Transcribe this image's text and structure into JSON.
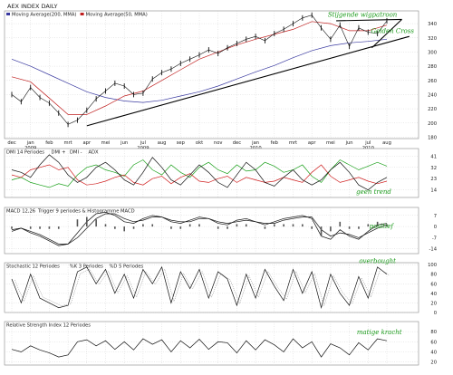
{
  "chart_data": {
    "type": "line",
    "title": "AEX INDEX DAILY",
    "colors": {
      "price": "#111111",
      "ma200": "#3a3aa0",
      "ma50": "#c02020",
      "dmi_plus": "#1aa01a",
      "dmi_minus": "#d02020",
      "adx": "#111111",
      "annot_green": "#1a9a1a",
      "annot_red": "#cc1111"
    },
    "time_axis": {
      "labels": [
        "dec",
        "jan",
        "feb",
        "mrt",
        "apr",
        "mei",
        "jun",
        "jul",
        "aug",
        "sep",
        "okt",
        "nov",
        "dec",
        "jan",
        "feb",
        "mrt",
        "apr",
        "mei",
        "jun",
        "jul",
        "aug"
      ],
      "year_labels": [
        {
          "after": "jan",
          "text": "2009"
        },
        {
          "after": "jul",
          "text": "2009"
        },
        {
          "after": "jan",
          "text": "2010"
        },
        {
          "after": "jul",
          "text": "2010"
        }
      ]
    },
    "panels": [
      {
        "id": "price",
        "legend": [
          "Moving Average(200, MMA)",
          "Moving Average(50, MMA)"
        ],
        "yticks": [
          180,
          200,
          220,
          240,
          260,
          280,
          300,
          320,
          340
        ],
        "ylim": [
          178,
          358
        ],
        "series": [
          {
            "name": "Moving Average(200, MMA)",
            "style": "line",
            "color_key": "ma200",
            "x": [
              0,
              1,
              2,
              3,
              4,
              5,
              6,
              7,
              8,
              9,
              10,
              11,
              12,
              13,
              14,
              15,
              16,
              17,
              18,
              19,
              20
            ],
            "values": [
              290,
              280,
              268,
              256,
              244,
              236,
              231,
              229,
              232,
              238,
              244,
              252,
              262,
              272,
              281,
              292,
              302,
              309,
              313,
              315,
              318
            ]
          },
          {
            "name": "Moving Average(50, MMA)",
            "style": "line",
            "color_key": "ma50",
            "x": [
              0,
              1,
              2,
              3,
              4,
              5,
              6,
              7,
              8,
              9,
              10,
              11,
              12,
              13,
              14,
              15,
              16,
              17,
              18,
              19,
              20
            ],
            "values": [
              265,
              258,
              235,
              212,
              212,
              224,
              238,
              245,
              260,
              275,
              290,
              300,
              310,
              318,
              325,
              332,
              343,
              340,
              330,
              330,
              338
            ]
          },
          {
            "name": "Koers",
            "style": "bars",
            "color_key": "price",
            "x": [
              0,
              0.5,
              1,
              1.5,
              2,
              2.5,
              3,
              3.5,
              4,
              4.5,
              5,
              5.5,
              6,
              6.5,
              7,
              7.5,
              8,
              8.5,
              9,
              9.5,
              10,
              10.5,
              11,
              11.5,
              12,
              12.5,
              13,
              13.5,
              14,
              14.5,
              15,
              15.5,
              16,
              16.5,
              17,
              17.5,
              18,
              18.5,
              19,
              19.5,
              20
            ],
            "values": [
              240,
              230,
              250,
              236,
              228,
              214,
              198,
              204,
              218,
              234,
              245,
              256,
              252,
              240,
              242,
              262,
              271,
              276,
              284,
              290,
              296,
              303,
              298,
              306,
              312,
              318,
              322,
              316,
              326,
              332,
              340,
              348,
              352,
              334,
              318,
              338,
              308,
              334,
              328,
              326,
              344
            ]
          }
        ],
        "trendlines": [
          {
            "from": [
              4,
              196
            ],
            "to": [
              21.2,
              322
            ]
          },
          {
            "from": [
              19.2,
              306
            ],
            "to": [
              20.8,
              346
            ]
          },
          {
            "from": [
              17.3,
              344
            ],
            "to": [
              20.8,
              346
            ]
          }
        ],
        "annotations": [
          {
            "text": "Stijgende wigpatroon",
            "color_key": "annot_green",
            "at": [
              18.7,
              350
            ]
          },
          {
            "text": "Golden Cross",
            "color_key": "annot_green",
            "at": [
              20.3,
              327
            ]
          }
        ]
      },
      {
        "id": "dmi",
        "legend": [
          "DMI 14 Periodes",
          "DMI +",
          "DMI -",
          "ADX"
        ],
        "yticks": [
          14,
          23,
          32,
          41
        ],
        "ylim": [
          8,
          47
        ],
        "series": [
          {
            "name": "DMI +",
            "color_key": "dmi_plus",
            "x": [
              0,
              0.5,
              1,
              1.5,
              2,
              2.5,
              3,
              3.5,
              4,
              4.5,
              5,
              5.5,
              6,
              6.5,
              7,
              7.5,
              8,
              8.5,
              9,
              9.5,
              10,
              10.5,
              11,
              11.5,
              12,
              12.5,
              13,
              13.5,
              14,
              14.5,
              15,
              15.5,
              16,
              16.5,
              17,
              17.5,
              18,
              18.5,
              19,
              19.5,
              20
            ],
            "values": [
              22,
              24,
              20,
              18,
              16,
              19,
              17,
              26,
              32,
              34,
              30,
              28,
              25,
              34,
              38,
              30,
              26,
              34,
              28,
              24,
              32,
              36,
              30,
              27,
              34,
              29,
              30,
              36,
              33,
              28,
              30,
              34,
              25,
              20,
              30,
              38,
              34,
              30,
              33,
              36,
              33
            ]
          },
          {
            "name": "DMI -",
            "color_key": "dmi_minus",
            "x": [
              0,
              0.5,
              1,
              1.5,
              2,
              2.5,
              3,
              3.5,
              4,
              4.5,
              5,
              5.5,
              6,
              6.5,
              7,
              7.5,
              8,
              8.5,
              9,
              9.5,
              10,
              10.5,
              11,
              11.5,
              12,
              12.5,
              13,
              13.5,
              14,
              14.5,
              15,
              15.5,
              16,
              16.5,
              17,
              17.5,
              18,
              18.5,
              19,
              19.5,
              20
            ],
            "values": [
              26,
              24,
              30,
              32,
              34,
              30,
              32,
              22,
              18,
              19,
              21,
              24,
              26,
              20,
              18,
              23,
              25,
              19,
              24,
              27,
              21,
              20,
              23,
              25,
              20,
              24,
              22,
              20,
              21,
              24,
              22,
              20,
              28,
              34,
              25,
              20,
              22,
              24,
              21,
              19,
              21
            ]
          },
          {
            "name": "ADX",
            "color_key": "adx",
            "x": [
              0,
              0.5,
              1,
              1.5,
              2,
              2.5,
              3,
              3.5,
              4,
              4.5,
              5,
              5.5,
              6,
              6.5,
              7,
              7.5,
              8,
              8.5,
              9,
              9.5,
              10,
              10.5,
              11,
              11.5,
              12,
              12.5,
              13,
              13.5,
              14,
              14.5,
              15,
              15.5,
              16,
              16.5,
              17,
              17.5,
              18,
              18.5,
              19,
              19.5,
              20
            ],
            "values": [
              30,
              28,
              24,
              34,
              42,
              36,
              26,
              20,
              24,
              32,
              36,
              30,
              22,
              18,
              28,
              40,
              32,
              22,
              18,
              26,
              34,
              28,
              20,
              16,
              26,
              36,
              30,
              20,
              17,
              24,
              30,
              22,
              18,
              22,
              30,
              36,
              28,
              18,
              14,
              20,
              24
            ]
          }
        ],
        "annotations": [
          {
            "text": "geen trend",
            "color_key": "annot_green",
            "at": [
              19.3,
              11
            ]
          }
        ]
      },
      {
        "id": "macd",
        "legend": [
          "MACD 12,26",
          "Trigger 9 periodes & Histogramme MACD"
        ],
        "yticks": [
          -14,
          -7,
          0,
          7
        ],
        "ylim": [
          -17,
          12
        ],
        "series": [
          {
            "name": "MACD",
            "color_key": "adx",
            "x": [
              0,
              0.5,
              1,
              1.5,
              2,
              2.5,
              3,
              3.5,
              4,
              4.5,
              5,
              5.5,
              6,
              6.5,
              7,
              7.5,
              8,
              8.5,
              9,
              9.5,
              10,
              10.5,
              11,
              11.5,
              12,
              12.5,
              13,
              13.5,
              14,
              14.5,
              15,
              15.5,
              16,
              16.5,
              17,
              17.5,
              18,
              18.5,
              19,
              19.5,
              20
            ],
            "values": [
              -3,
              -1,
              -4,
              -6,
              -9,
              -12,
              -11,
              -4,
              3,
              8,
              9,
              7,
              3,
              2,
              5,
              7,
              6,
              3,
              2,
              4,
              6,
              5,
              2,
              1,
              4,
              5,
              3,
              1,
              3,
              5,
              6,
              7,
              5,
              -6,
              -8,
              -2,
              -6,
              -8,
              -3,
              1,
              2
            ]
          },
          {
            "name": "Trigger",
            "color_key": "adx",
            "x": [
              0,
              0.5,
              1,
              1.5,
              2,
              2.5,
              3,
              3.5,
              4,
              4.5,
              5,
              5.5,
              6,
              6.5,
              7,
              7.5,
              8,
              8.5,
              9,
              9.5,
              10,
              10.5,
              11,
              11.5,
              12,
              12.5,
              13,
              13.5,
              14,
              14.5,
              15,
              15.5,
              16,
              16.5,
              17,
              17.5,
              18,
              18.5,
              19,
              19.5,
              20
            ],
            "values": [
              -2,
              -1,
              -3,
              -5,
              -8,
              -11,
              -11,
              -7,
              -1,
              5,
              8,
              8,
              5,
              3,
              4,
              6,
              6,
              4,
              3,
              3,
              5,
              5,
              3,
              2,
              3,
              4,
              3,
              2,
              2,
              4,
              5,
              6,
              6,
              -2,
              -6,
              -4,
              -5,
              -7,
              -4,
              -1,
              1
            ]
          }
        ],
        "annotations": [
          {
            "text": "positief",
            "color_key": "annot_green",
            "at": [
              19.7,
              -1
            ]
          }
        ]
      },
      {
        "id": "stoch",
        "legend": [
          "Stochastic 12 Periodes",
          "%K 3 Periodes",
          "%D 5 Periodes"
        ],
        "yticks": [
          0,
          20,
          40,
          60,
          80,
          100
        ],
        "ylim": [
          0,
          104
        ],
        "series": [
          {
            "name": "%K",
            "color_key": "adx",
            "x": [
              0,
              0.5,
              1,
              1.5,
              2,
              2.5,
              3,
              3.5,
              4,
              4.5,
              5,
              5.5,
              6,
              6.5,
              7,
              7.5,
              8,
              8.5,
              9,
              9.5,
              10,
              10.5,
              11,
              11.5,
              12,
              12.5,
              13,
              13.5,
              14,
              14.5,
              15,
              15.5,
              16,
              16.5,
              17,
              17.5,
              18,
              18.5,
              19,
              19.5,
              20
            ],
            "values": [
              70,
              20,
              80,
              30,
              20,
              10,
              15,
              85,
              95,
              60,
              90,
              40,
              80,
              30,
              90,
              60,
              95,
              20,
              85,
              50,
              90,
              30,
              85,
              70,
              15,
              80,
              30,
              90,
              55,
              25,
              90,
              40,
              85,
              10,
              80,
              40,
              15,
              75,
              30,
              95,
              80
            ]
          }
        ],
        "annotations": [
          {
            "text": "overbought",
            "color_key": "annot_red",
            "at": [
              19.5,
              103
            ]
          }
        ]
      },
      {
        "id": "rsi",
        "legend": [
          "Relative Strength Index 12 Periodes"
        ],
        "yticks": [
          20,
          40,
          60,
          80
        ],
        "ylim": [
          14,
          100
        ],
        "series": [
          {
            "name": "RSI",
            "color_key": "adx",
            "x": [
              0,
              0.5,
              1,
              1.5,
              2,
              2.5,
              3,
              3.5,
              4,
              4.5,
              5,
              5.5,
              6,
              6.5,
              7,
              7.5,
              8,
              8.5,
              9,
              9.5,
              10,
              10.5,
              11,
              11.5,
              12,
              12.5,
              13,
              13.5,
              14,
              14.5,
              15,
              15.5,
              16,
              16.5,
              17,
              17.5,
              18,
              18.5,
              19,
              19.5,
              20
            ],
            "values": [
              45,
              40,
              52,
              44,
              38,
              30,
              34,
              60,
              64,
              52,
              62,
              45,
              60,
              44,
              66,
              55,
              64,
              40,
              62,
              48,
              65,
              45,
              60,
              58,
              38,
              62,
              44,
              64,
              54,
              40,
              66,
              48,
              60,
              30,
              56,
              48,
              34,
              58,
              44,
              66,
              62
            ]
          }
        ],
        "annotations": [
          {
            "text": "matige kracht",
            "color_key": "annot_green",
            "at": [
              19.6,
              75
            ]
          }
        ]
      }
    ]
  }
}
